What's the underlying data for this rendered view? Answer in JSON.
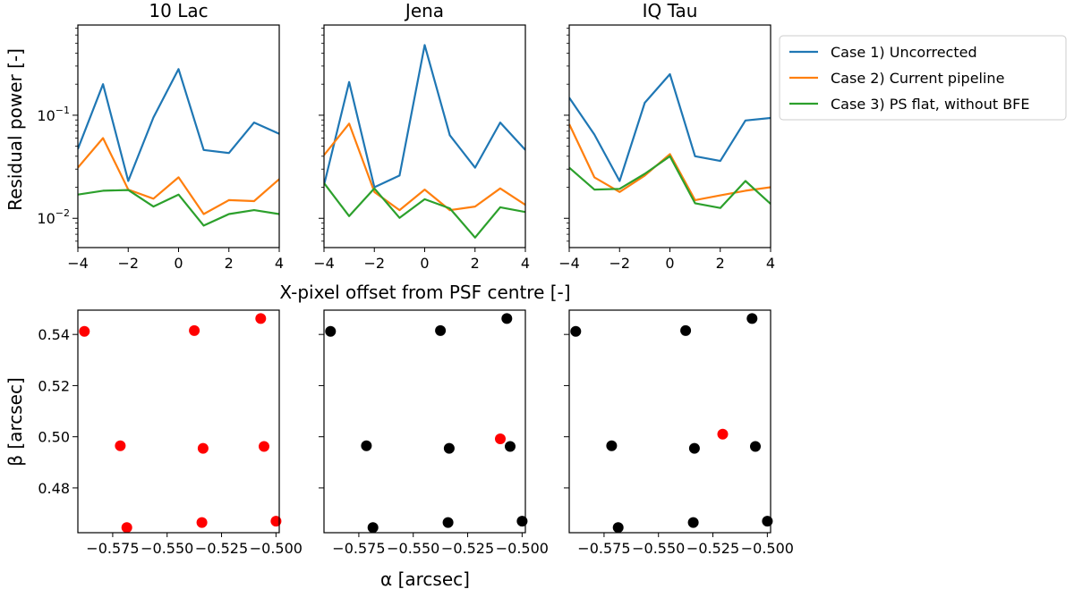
{
  "chart_data": {
    "type": "figure",
    "top_row": {
      "type": "line",
      "yscale": "log",
      "ylabel": "Residual power [-]",
      "xlabel": "X-pixel offset from PSF centre [-]",
      "xlim": [
        -4,
        4
      ],
      "ylim": [
        0.0052,
        0.75
      ],
      "x_ticks": [
        -4,
        -2,
        0,
        2,
        4
      ],
      "x_tick_labels": [
        "−4",
        "−2",
        "0",
        "2",
        "4"
      ],
      "y_major_ticks": [
        0.01,
        0.1
      ],
      "y_tick_base": "10",
      "y_tick_exponents": [
        "−2",
        "−1"
      ],
      "x": [
        -4,
        -3,
        -2,
        -1,
        0,
        1,
        2,
        3,
        4
      ],
      "legend": {
        "placement": "outside-right",
        "entries": [
          {
            "label": "Case 1) Uncorrected",
            "color": "#1f77b4"
          },
          {
            "label": "Case 2) Current pipeline",
            "color": "#ff7f0e"
          },
          {
            "label": "Case 3) PS flat, without BFE",
            "color": "#2ca02c"
          }
        ]
      },
      "panels": [
        {
          "title": "10 Lac",
          "series": [
            {
              "name": "Case 1) Uncorrected",
              "values": [
                0.047,
                0.2,
                0.023,
                0.095,
                0.28,
                0.046,
                0.043,
                0.085,
                0.066
              ]
            },
            {
              "name": "Case 2) Current pipeline",
              "values": [
                0.031,
                0.06,
                0.019,
                0.0155,
                0.025,
                0.011,
                0.015,
                0.0147,
                0.024
              ]
            },
            {
              "name": "Case 3) PS flat, without BFE",
              "values": [
                0.017,
                0.0185,
                0.0188,
                0.013,
                0.017,
                0.0085,
                0.011,
                0.012,
                0.011
              ]
            }
          ]
        },
        {
          "title": "Jena",
          "series": [
            {
              "name": "Case 1) Uncorrected",
              "values": [
                0.021,
                0.21,
                0.02,
                0.026,
                0.48,
                0.064,
                0.031,
                0.085,
                0.046
              ]
            },
            {
              "name": "Case 2) Current pipeline",
              "values": [
                0.041,
                0.083,
                0.018,
                0.012,
                0.019,
                0.012,
                0.013,
                0.0195,
                0.0135
              ]
            },
            {
              "name": "Case 3) PS flat, without BFE",
              "values": [
                0.022,
                0.0105,
                0.0195,
                0.0101,
                0.0153,
                0.0125,
                0.0065,
                0.0128,
                0.0115
              ]
            }
          ]
        },
        {
          "title": "IQ Tau",
          "series": [
            {
              "name": "Case 1) Uncorrected",
              "values": [
                0.148,
                0.065,
                0.023,
                0.132,
                0.25,
                0.04,
                0.036,
                0.089,
                0.094
              ]
            },
            {
              "name": "Case 2) Current pipeline",
              "values": [
                0.082,
                0.025,
                0.018,
                0.026,
                0.042,
                0.015,
                0.0167,
                0.0185,
                0.02
              ]
            },
            {
              "name": "Case 3) PS flat, without BFE",
              "values": [
                0.031,
                0.019,
                0.0193,
                0.027,
                0.04,
                0.014,
                0.0126,
                0.023,
                0.0138
              ]
            }
          ]
        }
      ]
    },
    "bottom_row": {
      "type": "scatter",
      "xlabel": "α [arcsec]",
      "ylabel": "β [arcsec]",
      "xlim": [
        -0.591,
        -0.4985
      ],
      "ylim": [
        0.4625,
        0.5495
      ],
      "x_ticks": [
        -0.575,
        -0.55,
        -0.525,
        -0.5
      ],
      "x_tick_labels": [
        "−0.575",
        "−0.550",
        "−0.525",
        "−0.500"
      ],
      "y_ticks": [
        0.48,
        0.5,
        0.52,
        0.54
      ],
      "y_tick_labels": [
        "0.48",
        "0.50",
        "0.52",
        "0.54"
      ],
      "colors": {
        "highlight": "#ff0000",
        "normal": "#000000"
      },
      "panels": [
        {
          "points": [
            {
              "x": -0.588,
              "y": 0.5412,
              "highlight": true
            },
            {
              "x": -0.5375,
              "y": 0.5415,
              "highlight": true
            },
            {
              "x": -0.507,
              "y": 0.5462,
              "highlight": true
            },
            {
              "x": -0.5715,
              "y": 0.4965,
              "highlight": true
            },
            {
              "x": -0.5335,
              "y": 0.4955,
              "highlight": true
            },
            {
              "x": -0.5055,
              "y": 0.4962,
              "highlight": true
            },
            {
              "x": -0.5685,
              "y": 0.4645,
              "highlight": true
            },
            {
              "x": -0.534,
              "y": 0.4665,
              "highlight": true
            },
            {
              "x": -0.5,
              "y": 0.467,
              "highlight": true
            }
          ]
        },
        {
          "points": [
            {
              "x": -0.588,
              "y": 0.5412,
              "highlight": false
            },
            {
              "x": -0.5375,
              "y": 0.5415,
              "highlight": false
            },
            {
              "x": -0.507,
              "y": 0.5462,
              "highlight": false
            },
            {
              "x": -0.5715,
              "y": 0.4965,
              "highlight": false
            },
            {
              "x": -0.5335,
              "y": 0.4955,
              "highlight": false
            },
            {
              "x": -0.5055,
              "y": 0.4962,
              "highlight": false
            },
            {
              "x": -0.5685,
              "y": 0.4645,
              "highlight": false
            },
            {
              "x": -0.534,
              "y": 0.4665,
              "highlight": false
            },
            {
              "x": -0.5,
              "y": 0.467,
              "highlight": false
            },
            {
              "x": -0.51,
              "y": 0.4992,
              "highlight": true
            }
          ]
        },
        {
          "points": [
            {
              "x": -0.588,
              "y": 0.5412,
              "highlight": false
            },
            {
              "x": -0.5375,
              "y": 0.5415,
              "highlight": false
            },
            {
              "x": -0.507,
              "y": 0.5462,
              "highlight": false
            },
            {
              "x": -0.5715,
              "y": 0.4965,
              "highlight": false
            },
            {
              "x": -0.5335,
              "y": 0.4955,
              "highlight": false
            },
            {
              "x": -0.5055,
              "y": 0.4962,
              "highlight": false
            },
            {
              "x": -0.5685,
              "y": 0.4645,
              "highlight": false
            },
            {
              "x": -0.534,
              "y": 0.4665,
              "highlight": false
            },
            {
              "x": -0.5,
              "y": 0.467,
              "highlight": false
            },
            {
              "x": -0.5205,
              "y": 0.501,
              "highlight": true
            }
          ]
        }
      ]
    }
  }
}
